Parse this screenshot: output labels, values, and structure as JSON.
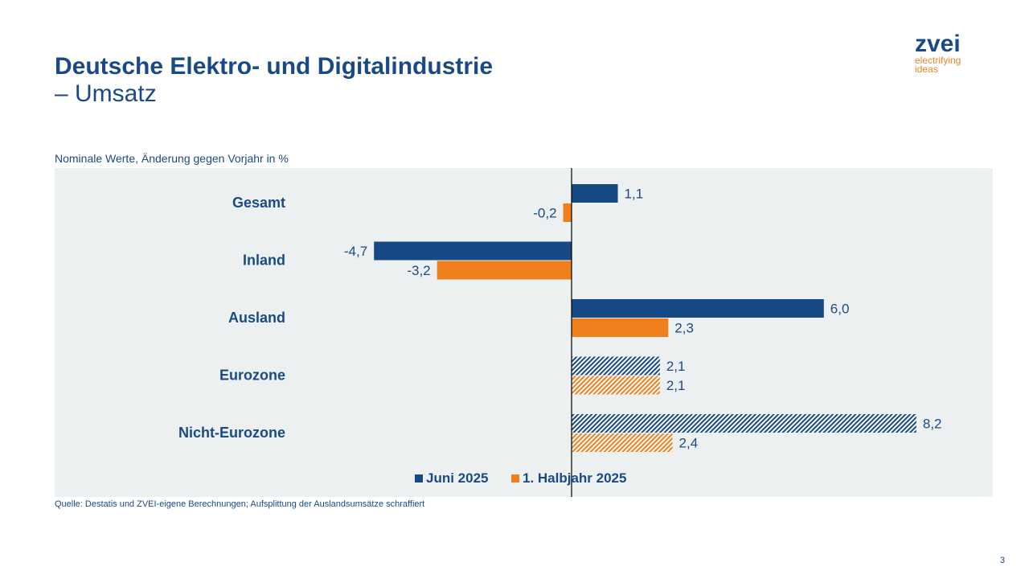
{
  "header": {
    "title_line1": "Deutsche Elektro- und Digitalindustrie",
    "title_line2": "– Umsatz"
  },
  "logo": {
    "name": "zvei",
    "tagline1": "electrifying",
    "tagline2": "ideas"
  },
  "subtitle": "Nominale Werte, Änderung gegen Vorjahr in %",
  "footer": {
    "source": "Quelle: Destatis und ZVEI-eigene Berechnungen; Aufsplittung der Auslandsumsätze schraffiert",
    "page_number": "3"
  },
  "chart_data": {
    "type": "bar",
    "orientation": "horizontal",
    "categories": [
      "Gesamt",
      "Inland",
      "Ausland",
      "Eurozone",
      "Nicht-Eurozone"
    ],
    "hatched_categories": [
      "Eurozone",
      "Nicht-Eurozone"
    ],
    "series": [
      {
        "name": "Juni 2025",
        "color": "#174a85",
        "values": [
          1.1,
          -4.7,
          6.0,
          2.1,
          8.2
        ],
        "labels": [
          "1,1",
          "-4,7",
          "6,0",
          "2,1",
          "8,2"
        ]
      },
      {
        "name": "1. Halbjahr 2025",
        "color": "#ee7f1b",
        "values": [
          -0.2,
          -3.2,
          2.3,
          2.1,
          2.4
        ],
        "labels": [
          "-0,2",
          "-3,2",
          "2,3",
          "2,1",
          "2,4"
        ]
      }
    ],
    "legend_position": "bottom",
    "grid": false
  }
}
